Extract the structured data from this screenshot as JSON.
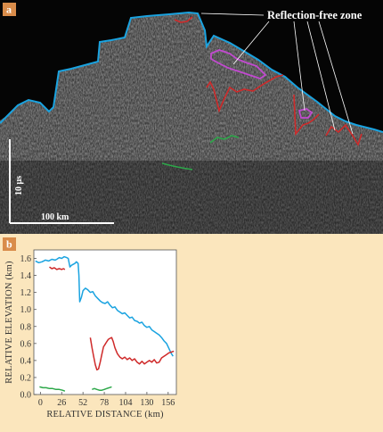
{
  "panel_a": {
    "label": "a",
    "callout": "Reflection-free zone",
    "scale_vertical": "10 µs",
    "scale_horizontal": "100 km"
  },
  "panel_b": {
    "label": "b"
  },
  "colors": {
    "surface": "#1aa3e0",
    "base_top": "#cf2a2a",
    "base_mid": "#cf2a2a",
    "deep": "#2da84a",
    "reflection_free": "#c24ad0",
    "panel_bg": "#fbe6bd",
    "plot_bg": "#ffffff",
    "label_bg": "#d98c4a"
  },
  "chart_data": {
    "type": "line",
    "xlabel": "RELATIVE DISTANCE (km)",
    "ylabel": "RELATIVE ELEVATION (km)",
    "xlim": [
      -8,
      166
    ],
    "ylim": [
      0,
      1.7
    ],
    "xticks": [
      0,
      26,
      52,
      78,
      104,
      130,
      156
    ],
    "yticks": [
      0,
      0.2,
      0.4,
      0.6,
      0.8,
      1.0,
      1.2,
      1.4,
      1.6
    ],
    "ytick_labels": [
      "0.0",
      "0.2",
      "0.4",
      "0.6",
      "0.8",
      "1.0",
      "1.2",
      "1.4",
      "1.6"
    ],
    "series": [
      {
        "color": "#1aa3e0",
        "x": [
          -6,
          -2,
          2,
          6,
          10,
          14,
          18,
          20,
          23,
          26,
          29,
          32,
          34,
          36,
          38,
          40,
          42,
          44,
          46,
          47,
          48,
          50,
          52,
          55,
          58,
          61,
          64,
          67,
          70,
          73,
          76,
          79,
          82,
          85,
          88,
          91,
          94,
          97,
          100,
          103,
          106,
          109,
          112,
          115,
          118,
          121,
          124,
          127,
          130,
          133,
          136,
          139,
          142,
          145,
          148,
          151,
          154,
          156,
          158,
          160,
          162
        ],
        "y": [
          1.57,
          1.55,
          1.56,
          1.58,
          1.57,
          1.59,
          1.58,
          1.59,
          1.61,
          1.6,
          1.62,
          1.61,
          1.6,
          1.5,
          1.52,
          1.53,
          1.54,
          1.56,
          1.54,
          1.4,
          1.09,
          1.14,
          1.22,
          1.25,
          1.23,
          1.2,
          1.21,
          1.16,
          1.13,
          1.1,
          1.08,
          1.07,
          1.09,
          1.05,
          1.02,
          1.03,
          0.99,
          0.97,
          0.95,
          0.96,
          0.93,
          0.9,
          0.91,
          0.87,
          0.86,
          0.84,
          0.85,
          0.81,
          0.79,
          0.8,
          0.76,
          0.74,
          0.72,
          0.7,
          0.67,
          0.63,
          0.6,
          0.56,
          0.52,
          0.48,
          0.45
        ]
      },
      {
        "color": "#cf2a2a",
        "x": [
          11,
          14,
          17,
          20,
          23,
          26,
          28,
          30
        ],
        "y": [
          1.5,
          1.48,
          1.49,
          1.47,
          1.48,
          1.47,
          1.48,
          1.47
        ]
      },
      {
        "color": "#cf2a2a",
        "x": [
          61,
          63,
          65,
          67,
          69,
          71,
          73,
          75,
          77,
          79,
          81,
          83,
          85,
          87,
          89,
          91,
          94,
          97,
          100,
          103,
          106,
          109,
          112,
          115,
          118,
          121,
          124,
          127,
          130,
          133,
          136,
          139,
          142,
          145,
          148,
          151,
          154,
          157,
          160,
          163
        ],
        "y": [
          0.67,
          0.55,
          0.45,
          0.35,
          0.29,
          0.3,
          0.38,
          0.47,
          0.56,
          0.59,
          0.62,
          0.65,
          0.66,
          0.67,
          0.62,
          0.55,
          0.48,
          0.44,
          0.42,
          0.44,
          0.41,
          0.43,
          0.4,
          0.42,
          0.38,
          0.36,
          0.39,
          0.36,
          0.38,
          0.4,
          0.38,
          0.41,
          0.37,
          0.38,
          0.43,
          0.45,
          0.47,
          0.49,
          0.5,
          0.51
        ]
      },
      {
        "color": "#2da84a",
        "x": [
          -1,
          3,
          7,
          11,
          15,
          19,
          23,
          27,
          30
        ],
        "y": [
          0.09,
          0.08,
          0.08,
          0.07,
          0.07,
          0.06,
          0.06,
          0.05,
          0.04
        ]
      },
      {
        "color": "#2da84a",
        "x": [
          63,
          66,
          69,
          72,
          75,
          78,
          81,
          84,
          87
        ],
        "y": [
          0.06,
          0.07,
          0.06,
          0.05,
          0.05,
          0.06,
          0.07,
          0.08,
          0.09
        ]
      }
    ]
  }
}
